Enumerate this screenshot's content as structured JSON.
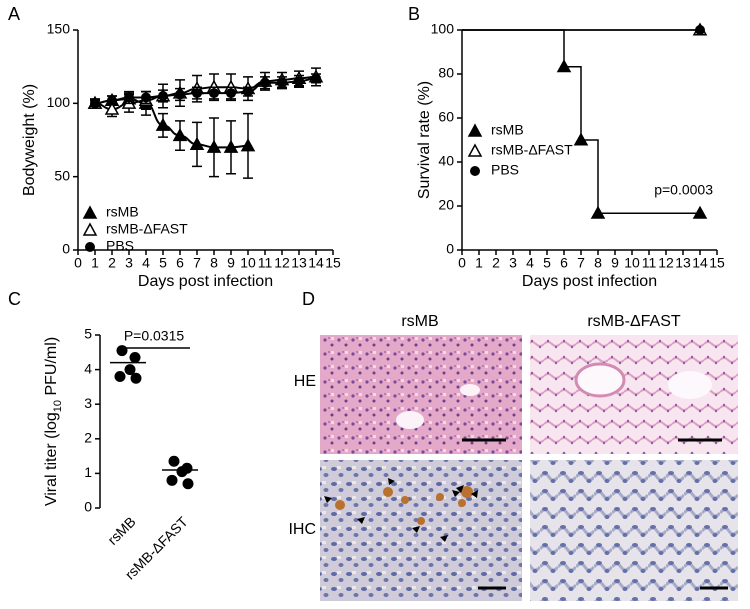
{
  "chart_data": [
    {
      "panel": "A",
      "type": "line",
      "xlabel": "Days post infection",
      "ylabel": "Bodyweight (%)",
      "xlim": [
        0,
        15
      ],
      "xticks": [
        0,
        1,
        2,
        3,
        4,
        5,
        6,
        7,
        8,
        9,
        10,
        11,
        12,
        13,
        14,
        15
      ],
      "ylim": [
        0,
        150
      ],
      "yticks": [
        0,
        50,
        100,
        150
      ],
      "legend": "lower left",
      "series": [
        {
          "name": "rsMB",
          "marker": "triangle",
          "color": "#000000",
          "x": [
            1,
            2,
            3,
            4,
            5,
            6,
            7,
            8,
            9,
            10
          ],
          "values": [
            100,
            102,
            103,
            100,
            85,
            78,
            72,
            70,
            70,
            71
          ],
          "errors": [
            2,
            3,
            4,
            8,
            8,
            10,
            15,
            20,
            18,
            22
          ]
        },
        {
          "name": "rsMB-ΔFAST",
          "marker": "triangle-open",
          "color": "#000000",
          "x": [
            1,
            2,
            3,
            4,
            5,
            6,
            7,
            8,
            9,
            10,
            11,
            12,
            13,
            14
          ],
          "values": [
            100,
            96,
            100,
            102,
            105,
            107,
            110,
            111,
            111,
            110,
            115,
            116,
            117,
            118
          ],
          "errors": [
            3,
            5,
            6,
            6,
            8,
            9,
            9,
            9,
            9,
            8,
            6,
            5,
            5,
            6
          ]
        },
        {
          "name": "PBS",
          "marker": "circle",
          "color": "#000000",
          "x": [
            1,
            2,
            3,
            4,
            5,
            6,
            7,
            8,
            9,
            10,
            11,
            12,
            13,
            14
          ],
          "values": [
            100,
            102,
            104,
            104,
            105,
            106,
            107,
            107,
            107,
            108,
            114,
            114,
            115,
            117
          ],
          "errors": [
            2,
            3,
            4,
            4,
            4,
            4,
            4,
            4,
            4,
            3,
            4,
            4,
            4,
            3
          ]
        }
      ]
    },
    {
      "panel": "B",
      "type": "step",
      "xlabel": "Days post infection",
      "ylabel": "Survival rate (%)",
      "xlim": [
        0,
        15
      ],
      "xticks": [
        0,
        1,
        2,
        3,
        4,
        5,
        6,
        7,
        8,
        9,
        10,
        11,
        12,
        13,
        14,
        15
      ],
      "ylim": [
        0,
        100
      ],
      "yticks": [
        0,
        20,
        40,
        60,
        80,
        100
      ],
      "legend": "lower left",
      "annotation": "p=0.0003",
      "series": [
        {
          "name": "rsMB",
          "marker": "triangle",
          "color": "#000000",
          "x": [
            0,
            6,
            7,
            8,
            14
          ],
          "values": [
            100,
            83.3,
            50,
            16.7,
            16.7
          ]
        },
        {
          "name": "rsMB-ΔFAST",
          "marker": "triangle-open",
          "color": "#000000",
          "x": [
            0,
            14
          ],
          "values": [
            100,
            100
          ]
        },
        {
          "name": "PBS",
          "marker": "circle",
          "color": "#000000",
          "x": [
            0,
            14
          ],
          "values": [
            100,
            100
          ]
        }
      ]
    },
    {
      "panel": "C",
      "type": "strip",
      "ylabel": [
        "Viral titer (log",
        "10",
        " PFU/ml)"
      ],
      "categories": [
        "rsMB",
        "rsMB-ΔFAST"
      ],
      "values": [
        [
          4.55,
          4.35,
          4.0,
          3.8,
          3.75
        ],
        [
          1.35,
          1.15,
          1.05,
          0.8,
          0.7
        ]
      ],
      "means": [
        4.2,
        1.1
      ],
      "ylim": [
        0,
        5
      ],
      "yticks": [
        0,
        1,
        2,
        3,
        4,
        5
      ],
      "annotation": "P=0.0315",
      "color": "#000000"
    }
  ],
  "micrographs": {
    "panel": "D",
    "columns": [
      "rsMB",
      "rsMB-ΔFAST"
    ],
    "rows": [
      "HE",
      "IHC"
    ]
  }
}
